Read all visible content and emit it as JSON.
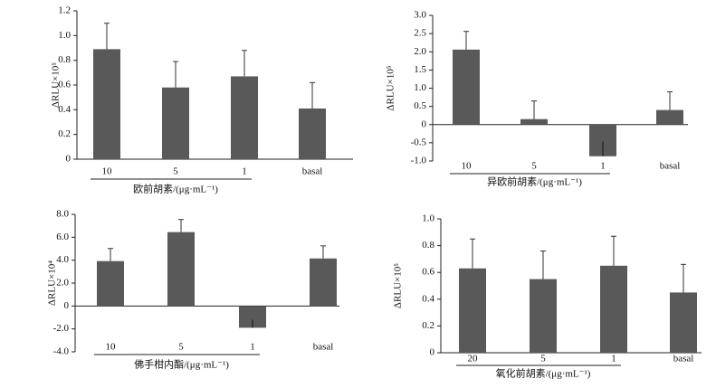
{
  "chart_data": [
    {
      "type": "bar",
      "y_label": "ΔRLU×10⁵",
      "x_label": "欧前胡素/(μg·mL⁻¹)",
      "categories": [
        "10",
        "5",
        "1",
        "basal"
      ],
      "values": [
        0.89,
        0.58,
        0.67,
        0.41
      ],
      "errors": [
        0.21,
        0.21,
        0.21,
        0.21
      ],
      "color": "#595959",
      "ylim": [
        0,
        1.2
      ],
      "yticks": [
        0,
        0.2,
        0.4,
        0.6,
        0.8,
        {
          "value": 1,
          "label": "1.0"
        },
        1.2
      ]
    },
    {
      "type": "bar",
      "y_label": "ΔRLU×10⁵",
      "x_label": "异欧前胡素/(μg·mL⁻¹)",
      "categories": [
        "10",
        "5",
        "1",
        "basal"
      ],
      "values": [
        2.06,
        0.15,
        -0.87,
        0.4
      ],
      "errors": [
        0.5,
        0.5,
        0.4,
        0.5
      ],
      "color": "#595959",
      "ylim": [
        -1,
        3
      ],
      "yticks": [
        {
          "value": -1,
          "label": "-1.0"
        },
        -0.5,
        0,
        0.5,
        {
          "value": 1,
          "label": "1.0"
        },
        1.5,
        {
          "value": 2,
          "label": "2.0"
        },
        2.5,
        {
          "value": 3,
          "label": "3.0"
        }
      ]
    },
    {
      "type": "bar",
      "y_label": "ΔRLU×10⁴",
      "x_label": "佛手柑内酯/(μg·mL⁻¹)",
      "categories": [
        "10",
        "5",
        "1",
        "basal"
      ],
      "values": [
        3.92,
        6.45,
        -1.9,
        4.15
      ],
      "errors": [
        1.1,
        1.1,
        0.7,
        1.1
      ],
      "color": "#595959",
      "ylim": [
        -4,
        8
      ],
      "yticks": [
        {
          "value": -4,
          "label": "-4.0"
        },
        {
          "value": -2,
          "label": "-2.0"
        },
        0,
        {
          "value": 2,
          "label": "2.0"
        },
        {
          "value": 4,
          "label": "4.0"
        },
        {
          "value": 6,
          "label": "6.0"
        },
        {
          "value": 8,
          "label": "8.0"
        }
      ]
    },
    {
      "type": "bar",
      "y_label": "ΔRLU×10⁵",
      "x_label": "氧化前胡素/(μg·mL⁻¹)",
      "categories": [
        "20",
        "5",
        "1",
        "basal"
      ],
      "values": [
        0.63,
        0.55,
        0.65,
        0.45
      ],
      "errors": [
        0.22,
        0.21,
        0.22,
        0.21
      ],
      "color": "#595959",
      "ylim": [
        0,
        1
      ],
      "yticks": [
        0,
        0.2,
        0.4,
        0.6,
        0.8,
        {
          "value": 1,
          "label": "1.0"
        }
      ]
    }
  ]
}
